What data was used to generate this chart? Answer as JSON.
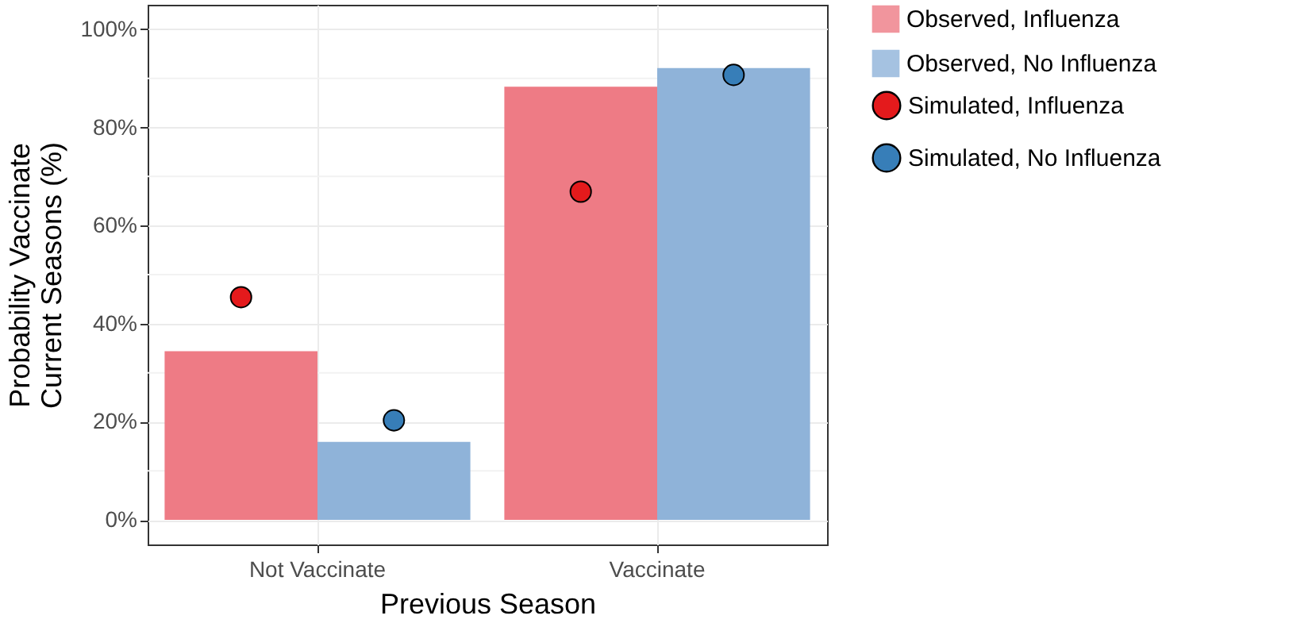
{
  "chart_data": {
    "type": "bar",
    "xlabel": "Previous Season",
    "ylabel": "Probability Vaccinate\nCurrent Seasons (%)",
    "categories": [
      "Not Vaccinate",
      "Vaccinate"
    ],
    "series": [
      {
        "name": "Observed, Influenza",
        "type": "bar",
        "color": "#ee7b85",
        "values": [
          34.4,
          88.3
        ]
      },
      {
        "name": "Observed, No Influenza",
        "type": "bar",
        "color": "#8fb3d9",
        "values": [
          15.9,
          92.1
        ]
      },
      {
        "name": "Simulated, Influenza",
        "type": "scatter",
        "color": "#e41a1c",
        "values": [
          45.4,
          66.9
        ]
      },
      {
        "name": "Simulated, No Influenza",
        "type": "scatter",
        "color": "#377eb8",
        "values": [
          20.3,
          90.7
        ]
      }
    ],
    "ylim": [
      -5,
      105
    ],
    "yticks": [
      {
        "value": 0,
        "label": "0%"
      },
      {
        "value": 20,
        "label": "20%"
      },
      {
        "value": 40,
        "label": "40%"
      },
      {
        "value": 60,
        "label": "60%"
      },
      {
        "value": 80,
        "label": "80%"
      },
      {
        "value": 100,
        "label": "100%"
      }
    ],
    "grid": true,
    "legend": "right",
    "marker": "circle"
  }
}
